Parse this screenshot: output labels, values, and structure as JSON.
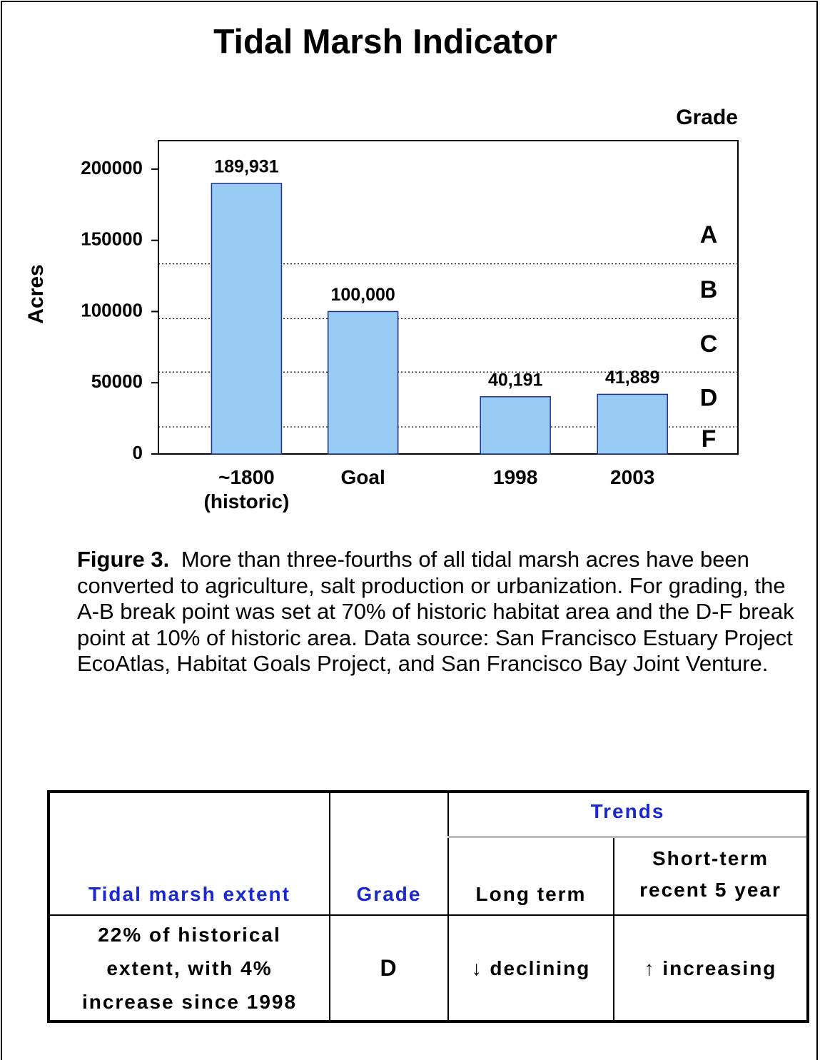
{
  "chart_data": {
    "type": "bar",
    "title": "Tidal Marsh Indicator",
    "ylabel": "Acres",
    "categories": [
      "~1800\n(historic)",
      "Goal",
      "1998",
      "2003"
    ],
    "values": [
      189931,
      100000,
      40191,
      41889
    ],
    "value_labels": [
      "189,931",
      "100,000",
      "40,191",
      "41,889"
    ],
    "color": "#99ccf5",
    "edgecolor": "#1f2f8a",
    "ylim": [
      0,
      220000
    ],
    "yticks": [
      0,
      50000,
      100000,
      150000,
      200000
    ],
    "grade_title": "Grade",
    "grades": [
      "A",
      "B",
      "C",
      "D",
      "F"
    ],
    "grade_breaks": [
      133500,
      95000,
      57500,
      19000
    ]
  },
  "caption": {
    "label": "Figure 3.",
    "text": "More than three-fourths of all tidal marsh acres have been converted to agriculture, salt production or urbanization.   For grading, the A-B break point was set at 70% of historic habitat area and the D-F break point at 10% of historic area. Data source: San Francisco Estuary Project EcoAtlas, Habitat Goals Project, and San Francisco Bay Joint Venture."
  },
  "table": {
    "headers": [
      "Tidal marsh extent",
      "Grade",
      "Trends",
      "Long term",
      "Short-term recent 5 year"
    ],
    "rows": [
      [
        "22% of historical extent, with 4% increase since 1998",
        "D",
        "↓ declining",
        "↑ increasing"
      ]
    ]
  }
}
